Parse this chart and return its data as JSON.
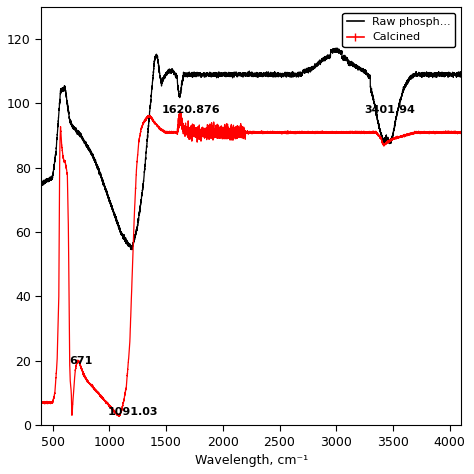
{
  "xlabel": "Wavelength, cm⁻¹",
  "xlim": [
    400,
    4100
  ],
  "ylim": [
    0,
    130
  ],
  "yticks": [
    0,
    20,
    40,
    60,
    80,
    100,
    120
  ],
  "xticks": [
    500,
    1000,
    1500,
    2000,
    2500,
    3000,
    3500,
    4000
  ],
  "legend_labels": [
    "Raw phosph...",
    "Calcined"
  ],
  "line_colors": [
    "black",
    "red"
  ],
  "lw_black": 0.9,
  "lw_red": 0.9
}
